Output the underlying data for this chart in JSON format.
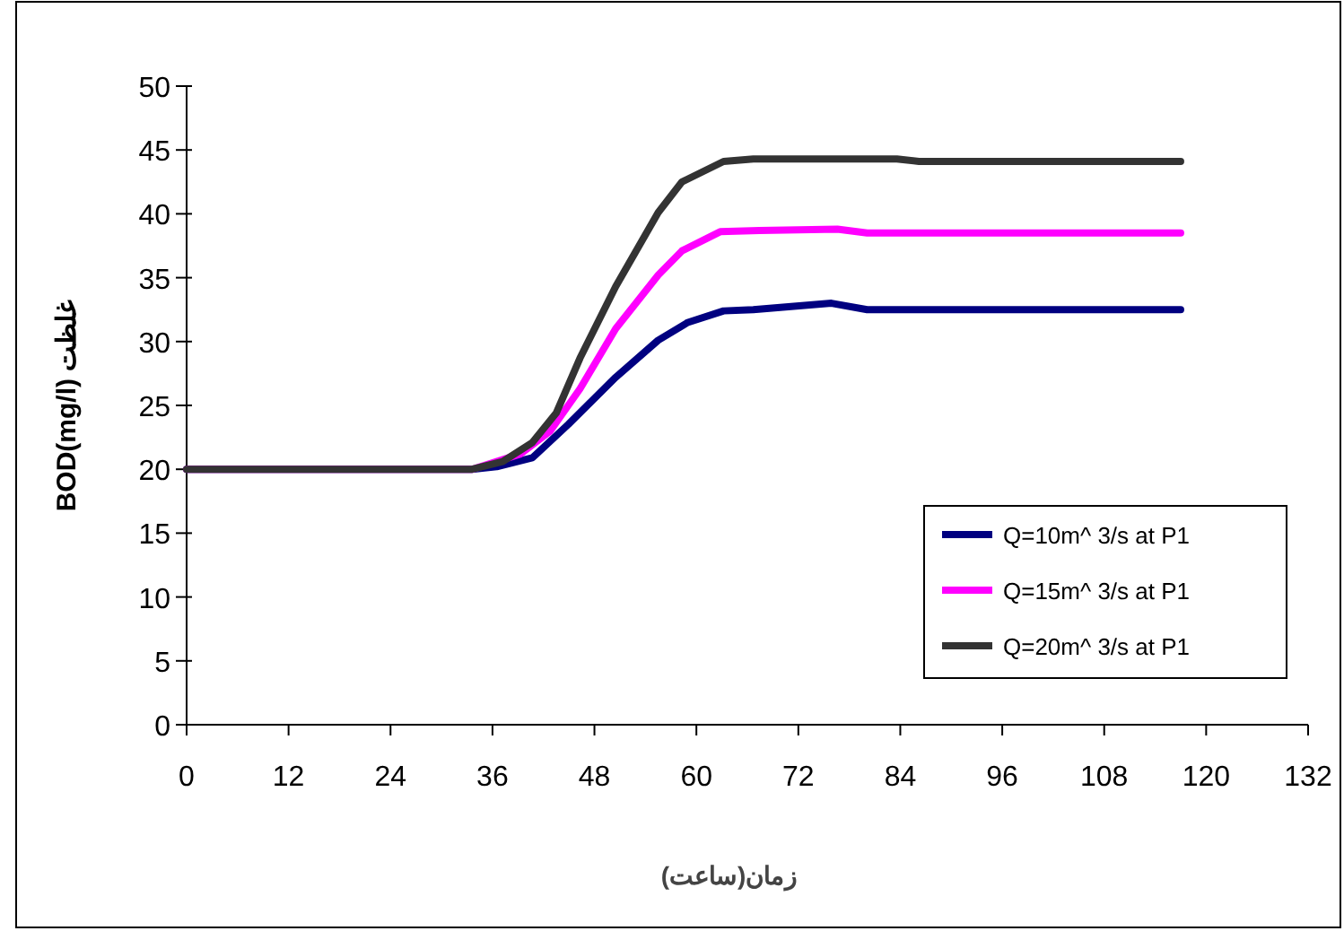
{
  "chart_data": {
    "type": "line",
    "xlabel": "زمان(ساعت)",
    "ylabel": "غلظت BOD(mg/l)",
    "xlim": [
      0,
      132
    ],
    "xticks": [
      0,
      12,
      24,
      36,
      48,
      60,
      72,
      84,
      96,
      108,
      120,
      132
    ],
    "ylim": [
      0,
      50
    ],
    "yticks": [
      0,
      5,
      10,
      15,
      20,
      25,
      30,
      35,
      40,
      45,
      50
    ],
    "grid": false,
    "legend": "bottom right",
    "marker": "none",
    "line_style": "solid",
    "series": [
      {
        "name": "Q=10m^ 3/s at P1",
        "color": "#000080",
        "x": [
          0,
          33.6,
          36.5,
          40.7,
          44.9,
          50.5,
          55.5,
          59,
          63.2,
          66.7,
          75.9,
          80.1,
          117
        ],
        "values": [
          20,
          20,
          20.2,
          20.9,
          23.5,
          27.2,
          30.1,
          31.5,
          32.4,
          32.5,
          33,
          32.5,
          32.5
        ]
      },
      {
        "name": "Q=15m^ 3/s at P1",
        "color": "#ff00ff",
        "x": [
          0,
          33.6,
          39.3,
          42.8,
          46.3,
          50.5,
          55.5,
          58.3,
          62.8,
          67.4,
          76.6,
          80.1,
          117
        ],
        "values": [
          20,
          20,
          21.2,
          23,
          26.3,
          31,
          35.2,
          37.1,
          38.6,
          38.7,
          38.8,
          38.5,
          38.5
        ]
      },
      {
        "name": "Q=20m^ 3/s at P1",
        "color": "#333333",
        "x": [
          0,
          33.6,
          37.2,
          40.7,
          43.5,
          46.3,
          50.5,
          55.5,
          58.3,
          63.2,
          66.7,
          83.6,
          86.2,
          117
        ],
        "values": [
          20,
          20,
          20.6,
          22.1,
          24.4,
          28.7,
          34.3,
          40.1,
          42.5,
          44.1,
          44.3,
          44.3,
          44.1,
          44.1
        ]
      }
    ]
  }
}
